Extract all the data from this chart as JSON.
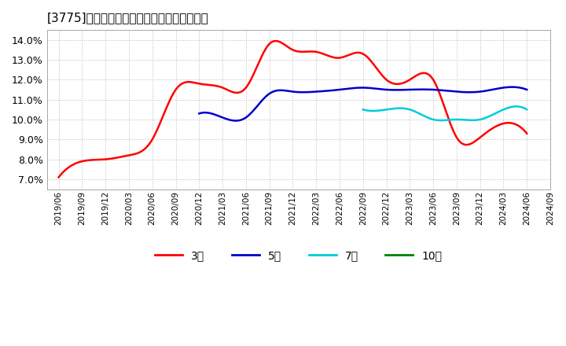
{
  "title": "[3775]　経常利益マージンの標準偏差の推移",
  "background_color": "#ffffff",
  "plot_bg_color": "#ffffff",
  "grid_color": "#bbbbbb",
  "ylim": [
    0.065,
    0.145
  ],
  "yticks": [
    0.07,
    0.08,
    0.09,
    0.1,
    0.11,
    0.12,
    0.13,
    0.14
  ],
  "series": {
    "3年": {
      "color": "#ff0000",
      "x": [
        0,
        1,
        2,
        3,
        4,
        5,
        6,
        7,
        8,
        9,
        10,
        11,
        12,
        13,
        14,
        15,
        16,
        17,
        18,
        19,
        20
      ],
      "values": [
        0.071,
        0.079,
        0.08,
        0.082,
        0.09,
        0.115,
        0.118,
        0.116,
        0.116,
        0.138,
        0.135,
        0.134,
        0.131,
        0.133,
        0.12,
        0.12,
        0.12,
        0.091,
        0.091,
        0.098,
        0.093
      ]
    },
    "5年": {
      "color": "#0000cc",
      "x": [
        6,
        7,
        8,
        9,
        10,
        11,
        12,
        13,
        14,
        15,
        16,
        17,
        18,
        19,
        20
      ],
      "values": [
        0.103,
        0.101,
        0.101,
        0.113,
        0.114,
        0.114,
        0.115,
        0.116,
        0.115,
        0.115,
        0.115,
        0.114,
        0.114,
        0.116,
        0.115
      ]
    },
    "7年": {
      "color": "#00ccdd",
      "x": [
        13,
        14,
        15,
        16,
        17,
        18,
        19,
        20
      ],
      "values": [
        0.105,
        0.105,
        0.105,
        0.1,
        0.1,
        0.1,
        0.105,
        0.105
      ]
    },
    "10年": {
      "color": "#008000",
      "x": [],
      "values": []
    }
  },
  "legend_labels": [
    "3年",
    "5年",
    "7年",
    "10年"
  ],
  "legend_colors": [
    "#ff0000",
    "#0000cc",
    "#00ccdd",
    "#008000"
  ],
  "xtick_labels": [
    "2019/06",
    "2019/09",
    "2019/12",
    "2020/03",
    "2020/06",
    "2020/09",
    "2020/12",
    "2021/03",
    "2021/06",
    "2021/09",
    "2021/12",
    "2022/03",
    "2022/06",
    "2022/09",
    "2022/12",
    "2023/03",
    "2023/06",
    "2023/09",
    "2023/12",
    "2024/03",
    "2024/06",
    "2024/09"
  ],
  "n_xticks": 22
}
